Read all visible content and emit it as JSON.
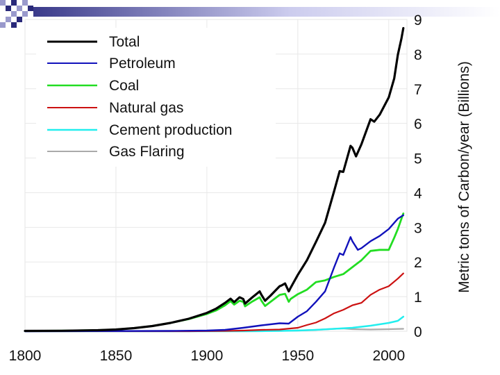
{
  "chart_data": {
    "type": "line",
    "title": "",
    "xlabel": "",
    "ylabel": "Metric tons of Carbon/year (Billions)",
    "xlim": [
      1800,
      2010
    ],
    "ylim": [
      0,
      9
    ],
    "x_ticks": [
      "1800",
      "1850",
      "1900",
      "1950",
      "2000"
    ],
    "y_ticks": [
      "0",
      "1",
      "2",
      "3",
      "4",
      "5",
      "6",
      "7",
      "8",
      "9"
    ],
    "grid": true,
    "legend_position": "top-left",
    "series": [
      {
        "name": "Total",
        "color": "#000000",
        "points": [
          [
            1800,
            0.01
          ],
          [
            1820,
            0.015
          ],
          [
            1840,
            0.03
          ],
          [
            1850,
            0.05
          ],
          [
            1860,
            0.09
          ],
          [
            1870,
            0.15
          ],
          [
            1880,
            0.24
          ],
          [
            1890,
            0.36
          ],
          [
            1900,
            0.53
          ],
          [
            1905,
            0.65
          ],
          [
            1910,
            0.82
          ],
          [
            1913,
            0.94
          ],
          [
            1915,
            0.84
          ],
          [
            1918,
            0.98
          ],
          [
            1920,
            0.93
          ],
          [
            1921,
            0.8
          ],
          [
            1925,
            0.98
          ],
          [
            1929,
            1.15
          ],
          [
            1930,
            1.05
          ],
          [
            1932,
            0.88
          ],
          [
            1935,
            1.03
          ],
          [
            1940,
            1.3
          ],
          [
            1941,
            1.32
          ],
          [
            1943,
            1.38
          ],
          [
            1945,
            1.15
          ],
          [
            1946,
            1.25
          ],
          [
            1950,
            1.63
          ],
          [
            1955,
            2.05
          ],
          [
            1960,
            2.58
          ],
          [
            1965,
            3.13
          ],
          [
            1970,
            4.05
          ],
          [
            1973,
            4.62
          ],
          [
            1975,
            4.6
          ],
          [
            1979,
            5.35
          ],
          [
            1980,
            5.3
          ],
          [
            1982,
            5.05
          ],
          [
            1985,
            5.4
          ],
          [
            1990,
            6.12
          ],
          [
            1992,
            6.05
          ],
          [
            1995,
            6.25
          ],
          [
            2000,
            6.75
          ],
          [
            2003,
            7.3
          ],
          [
            2005,
            7.98
          ],
          [
            2007,
            8.45
          ],
          [
            2008,
            8.75
          ]
        ]
      },
      {
        "name": "Petroleum",
        "color": "#1111bb",
        "points": [
          [
            1800,
            0
          ],
          [
            1880,
            0.01
          ],
          [
            1900,
            0.02
          ],
          [
            1910,
            0.04
          ],
          [
            1920,
            0.1
          ],
          [
            1930,
            0.17
          ],
          [
            1940,
            0.23
          ],
          [
            1945,
            0.22
          ],
          [
            1950,
            0.42
          ],
          [
            1955,
            0.58
          ],
          [
            1960,
            0.85
          ],
          [
            1965,
            1.15
          ],
          [
            1970,
            1.85
          ],
          [
            1973,
            2.25
          ],
          [
            1975,
            2.2
          ],
          [
            1979,
            2.72
          ],
          [
            1980,
            2.6
          ],
          [
            1983,
            2.35
          ],
          [
            1985,
            2.4
          ],
          [
            1990,
            2.6
          ],
          [
            1995,
            2.75
          ],
          [
            2000,
            2.95
          ],
          [
            2005,
            3.25
          ],
          [
            2008,
            3.35
          ]
        ]
      },
      {
        "name": "Coal",
        "color": "#22dd22",
        "points": [
          [
            1800,
            0.01
          ],
          [
            1820,
            0.015
          ],
          [
            1840,
            0.03
          ],
          [
            1850,
            0.05
          ],
          [
            1860,
            0.09
          ],
          [
            1870,
            0.15
          ],
          [
            1880,
            0.24
          ],
          [
            1890,
            0.35
          ],
          [
            1900,
            0.5
          ],
          [
            1905,
            0.6
          ],
          [
            1910,
            0.75
          ],
          [
            1913,
            0.87
          ],
          [
            1915,
            0.77
          ],
          [
            1918,
            0.88
          ],
          [
            1920,
            0.85
          ],
          [
            1921,
            0.72
          ],
          [
            1925,
            0.86
          ],
          [
            1929,
            0.98
          ],
          [
            1930,
            0.88
          ],
          [
            1932,
            0.73
          ],
          [
            1935,
            0.85
          ],
          [
            1940,
            1.05
          ],
          [
            1943,
            1.08
          ],
          [
            1945,
            0.85
          ],
          [
            1946,
            0.93
          ],
          [
            1950,
            1.07
          ],
          [
            1955,
            1.2
          ],
          [
            1960,
            1.42
          ],
          [
            1965,
            1.47
          ],
          [
            1970,
            1.57
          ],
          [
            1975,
            1.65
          ],
          [
            1980,
            1.85
          ],
          [
            1985,
            2.05
          ],
          [
            1990,
            2.32
          ],
          [
            1995,
            2.35
          ],
          [
            2000,
            2.35
          ],
          [
            2003,
            2.7
          ],
          [
            2005,
            2.95
          ],
          [
            2007,
            3.25
          ],
          [
            2008,
            3.4
          ]
        ]
      },
      {
        "name": "Natural gas",
        "color": "#cc1111",
        "points": [
          [
            1800,
            0
          ],
          [
            1890,
            0
          ],
          [
            1900,
            0.005
          ],
          [
            1910,
            0.01
          ],
          [
            1920,
            0.02
          ],
          [
            1930,
            0.04
          ],
          [
            1940,
            0.05
          ],
          [
            1950,
            0.1
          ],
          [
            1955,
            0.18
          ],
          [
            1960,
            0.25
          ],
          [
            1965,
            0.37
          ],
          [
            1970,
            0.52
          ],
          [
            1975,
            0.62
          ],
          [
            1980,
            0.75
          ],
          [
            1985,
            0.82
          ],
          [
            1990,
            1.05
          ],
          [
            1995,
            1.2
          ],
          [
            2000,
            1.3
          ],
          [
            2005,
            1.52
          ],
          [
            2008,
            1.67
          ]
        ]
      },
      {
        "name": "Cement production",
        "color": "#22eeee",
        "points": [
          [
            1800,
            0
          ],
          [
            1920,
            0.002
          ],
          [
            1930,
            0.005
          ],
          [
            1940,
            0.01
          ],
          [
            1950,
            0.02
          ],
          [
            1960,
            0.04
          ],
          [
            1970,
            0.07
          ],
          [
            1980,
            0.1
          ],
          [
            1990,
            0.16
          ],
          [
            1995,
            0.2
          ],
          [
            2000,
            0.24
          ],
          [
            2005,
            0.3
          ],
          [
            2008,
            0.42
          ]
        ]
      },
      {
        "name": "Gas Flaring",
        "color": "#aaaaaa",
        "points": [
          [
            1800,
            0
          ],
          [
            1920,
            0.005
          ],
          [
            1940,
            0.01
          ],
          [
            1950,
            0.02
          ],
          [
            1960,
            0.04
          ],
          [
            1970,
            0.07
          ],
          [
            1975,
            0.08
          ],
          [
            1980,
            0.06
          ],
          [
            1990,
            0.05
          ],
          [
            2000,
            0.06
          ],
          [
            2008,
            0.07
          ]
        ]
      }
    ]
  }
}
